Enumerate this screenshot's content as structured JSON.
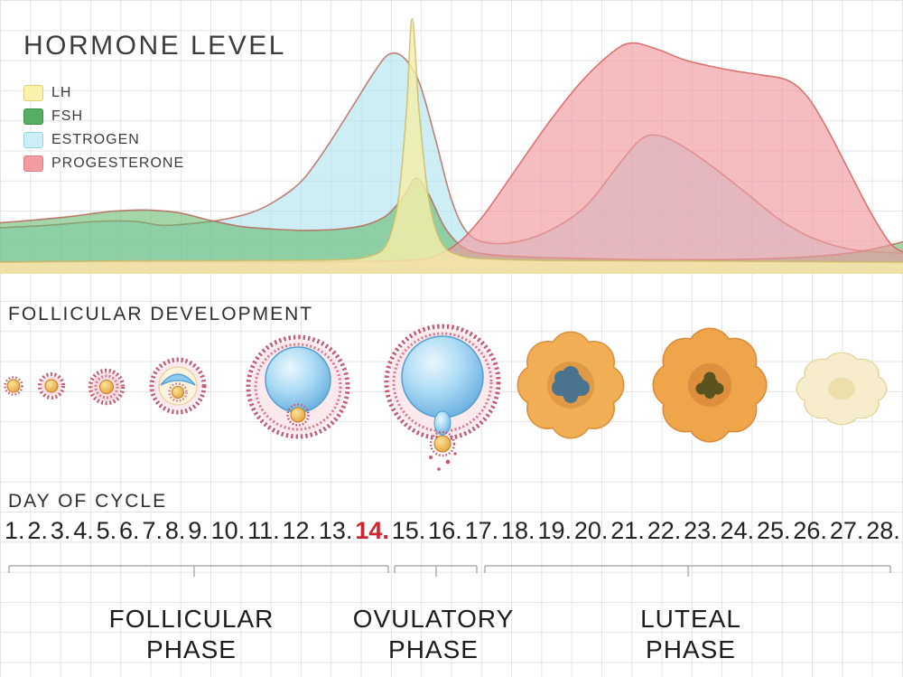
{
  "title": "HORMONE LEVEL",
  "legend": {
    "items": [
      {
        "label": "LH",
        "color": "#f8f2ae",
        "border": "#ddd06e"
      },
      {
        "label": "FSH",
        "color": "#56ae63",
        "border": "#3f8f4a"
      },
      {
        "label": "ESTROGEN",
        "color": "#cdeef6",
        "border": "#96d2e0"
      },
      {
        "label": "PROGESTERONE",
        "color": "#f29ba1",
        "border": "#df7d84"
      }
    ]
  },
  "sections": {
    "follicular_development": "FOLLICULAR DEVELOPMENT",
    "day_of_cycle": "DAY OF CYCLE"
  },
  "days": {
    "numbers": [
      "1.",
      "2.",
      "3.",
      "4.",
      "5.",
      "6.",
      "7.",
      "8.",
      "9.",
      "10.",
      "11.",
      "12.",
      "13.",
      "14.",
      "15.",
      "16.",
      "17.",
      "18.",
      "19.",
      "20.",
      "21.",
      "22.",
      "23.",
      "24.",
      "25.",
      "26.",
      "27.",
      "28."
    ],
    "highlight": "14."
  },
  "phases": [
    {
      "name": "follicular",
      "line1": "FOLLICULAR",
      "line2": "PHASE"
    },
    {
      "name": "ovulatory",
      "line1": "OVULATORY",
      "line2": "PHASE"
    },
    {
      "name": "luteal",
      "line1": "LUTEAL",
      "line2": "PHASE"
    }
  ],
  "colors": {
    "grid": "#e3e3e3",
    "text": "#2b2b2b",
    "day_highlight": "#d2232e"
  },
  "follicles": {
    "stages": [
      "primordial-follicle-icon",
      "primary-follicle-icon",
      "secondary-follicle-icon",
      "early-antral-follicle-icon",
      "mature-follicle-icon",
      "ovulation-icon",
      "corpus-luteum-early-icon",
      "corpus-luteum-icon",
      "corpus-albicans-icon"
    ]
  },
  "chart_data": {
    "type": "area",
    "title": "HORMONE LEVEL",
    "xlabel": "DAY OF CYCLE",
    "x_range": [
      0,
      28
    ],
    "y_range": [
      0,
      100
    ],
    "grid": true,
    "legend_position": "top-left",
    "series": [
      {
        "id": "estrogen",
        "name": "ESTROGEN",
        "fill": "#aee3ef",
        "stroke": "#b96a5e",
        "opacity": 0.62,
        "points": [
          [
            0,
            17
          ],
          [
            1.5,
            18
          ],
          [
            3,
            19.5
          ],
          [
            4.2,
            19.5
          ],
          [
            5,
            18
          ],
          [
            5.8,
            18.5
          ],
          [
            6.8,
            20
          ],
          [
            7.8,
            23
          ],
          [
            8.6,
            28
          ],
          [
            9.4,
            36
          ],
          [
            10.2,
            50
          ],
          [
            11,
            66
          ],
          [
            11.6,
            78
          ],
          [
            12.05,
            85
          ],
          [
            12.5,
            84
          ],
          [
            13,
            74
          ],
          [
            13.5,
            52
          ],
          [
            14,
            28
          ],
          [
            14.5,
            15
          ],
          [
            15.2,
            11
          ],
          [
            16.2,
            12
          ],
          [
            17.2,
            17
          ],
          [
            18.2,
            26
          ],
          [
            19.2,
            42
          ],
          [
            19.9,
            52
          ],
          [
            20.5,
            53
          ],
          [
            21.3,
            48
          ],
          [
            22.2,
            40
          ],
          [
            23.2,
            30
          ],
          [
            24.2,
            20
          ],
          [
            25.2,
            13
          ],
          [
            26.4,
            8.5
          ],
          [
            28,
            7
          ]
        ]
      },
      {
        "id": "fsh",
        "name": "FSH",
        "fill": "#63b96d",
        "stroke": "#b5685b",
        "opacity": 0.58,
        "points": [
          [
            0,
            19
          ],
          [
            1,
            20
          ],
          [
            2.2,
            21.5
          ],
          [
            3.5,
            23.5
          ],
          [
            4.5,
            24
          ],
          [
            5.5,
            23
          ],
          [
            6.5,
            20
          ],
          [
            7.5,
            17.5
          ],
          [
            8.5,
            16.5
          ],
          [
            9.5,
            16
          ],
          [
            10.5,
            16.5
          ],
          [
            11.3,
            18
          ],
          [
            12,
            22
          ],
          [
            12.55,
            30
          ],
          [
            12.9,
            36.5
          ],
          [
            13.3,
            30
          ],
          [
            13.8,
            17
          ],
          [
            14.4,
            9
          ],
          [
            15.2,
            6.5
          ],
          [
            16.5,
            5.5
          ],
          [
            18,
            5
          ],
          [
            20,
            4.5
          ],
          [
            22,
            4.5
          ],
          [
            24,
            5
          ],
          [
            25.5,
            6
          ],
          [
            26.8,
            8
          ],
          [
            28,
            11.5
          ]
        ]
      },
      {
        "id": "progesterone",
        "name": "PROGESTERONE",
        "fill": "#f19aa0",
        "stroke": "#d4605f",
        "opacity": 0.65,
        "points": [
          [
            0,
            3.5
          ],
          [
            3,
            3.8
          ],
          [
            6,
            3.6
          ],
          [
            9,
            3.5
          ],
          [
            11,
            3.8
          ],
          [
            12.5,
            4.2
          ],
          [
            13.4,
            5.5
          ],
          [
            14.2,
            11
          ],
          [
            15,
            22
          ],
          [
            16,
            40
          ],
          [
            17,
            58
          ],
          [
            18,
            74
          ],
          [
            19,
            86
          ],
          [
            19.6,
            89.5
          ],
          [
            20.4,
            87
          ],
          [
            21.2,
            83
          ],
          [
            22,
            80.5
          ],
          [
            22.8,
            78.5
          ],
          [
            23.6,
            77
          ],
          [
            24.4,
            75
          ],
          [
            25,
            69
          ],
          [
            25.6,
            57
          ],
          [
            26.3,
            40
          ],
          [
            27,
            23
          ],
          [
            27.6,
            11
          ],
          [
            28,
            7.5
          ]
        ]
      },
      {
        "id": "lh",
        "name": "LH",
        "fill": "#f6efa9",
        "stroke": "#cdbd67",
        "opacity": 0.8,
        "points": [
          [
            0,
            3.5
          ],
          [
            4,
            4
          ],
          [
            8,
            4.2
          ],
          [
            10.5,
            4.5
          ],
          [
            11.5,
            6
          ],
          [
            12,
            11
          ],
          [
            12.35,
            28
          ],
          [
            12.6,
            62
          ],
          [
            12.78,
            99
          ],
          [
            13.0,
            62
          ],
          [
            13.3,
            28
          ],
          [
            13.7,
            11
          ],
          [
            14.3,
            6
          ],
          [
            15.2,
            4.8
          ],
          [
            17,
            4.2
          ],
          [
            21,
            4
          ],
          [
            28,
            3.5
          ]
        ]
      }
    ]
  }
}
